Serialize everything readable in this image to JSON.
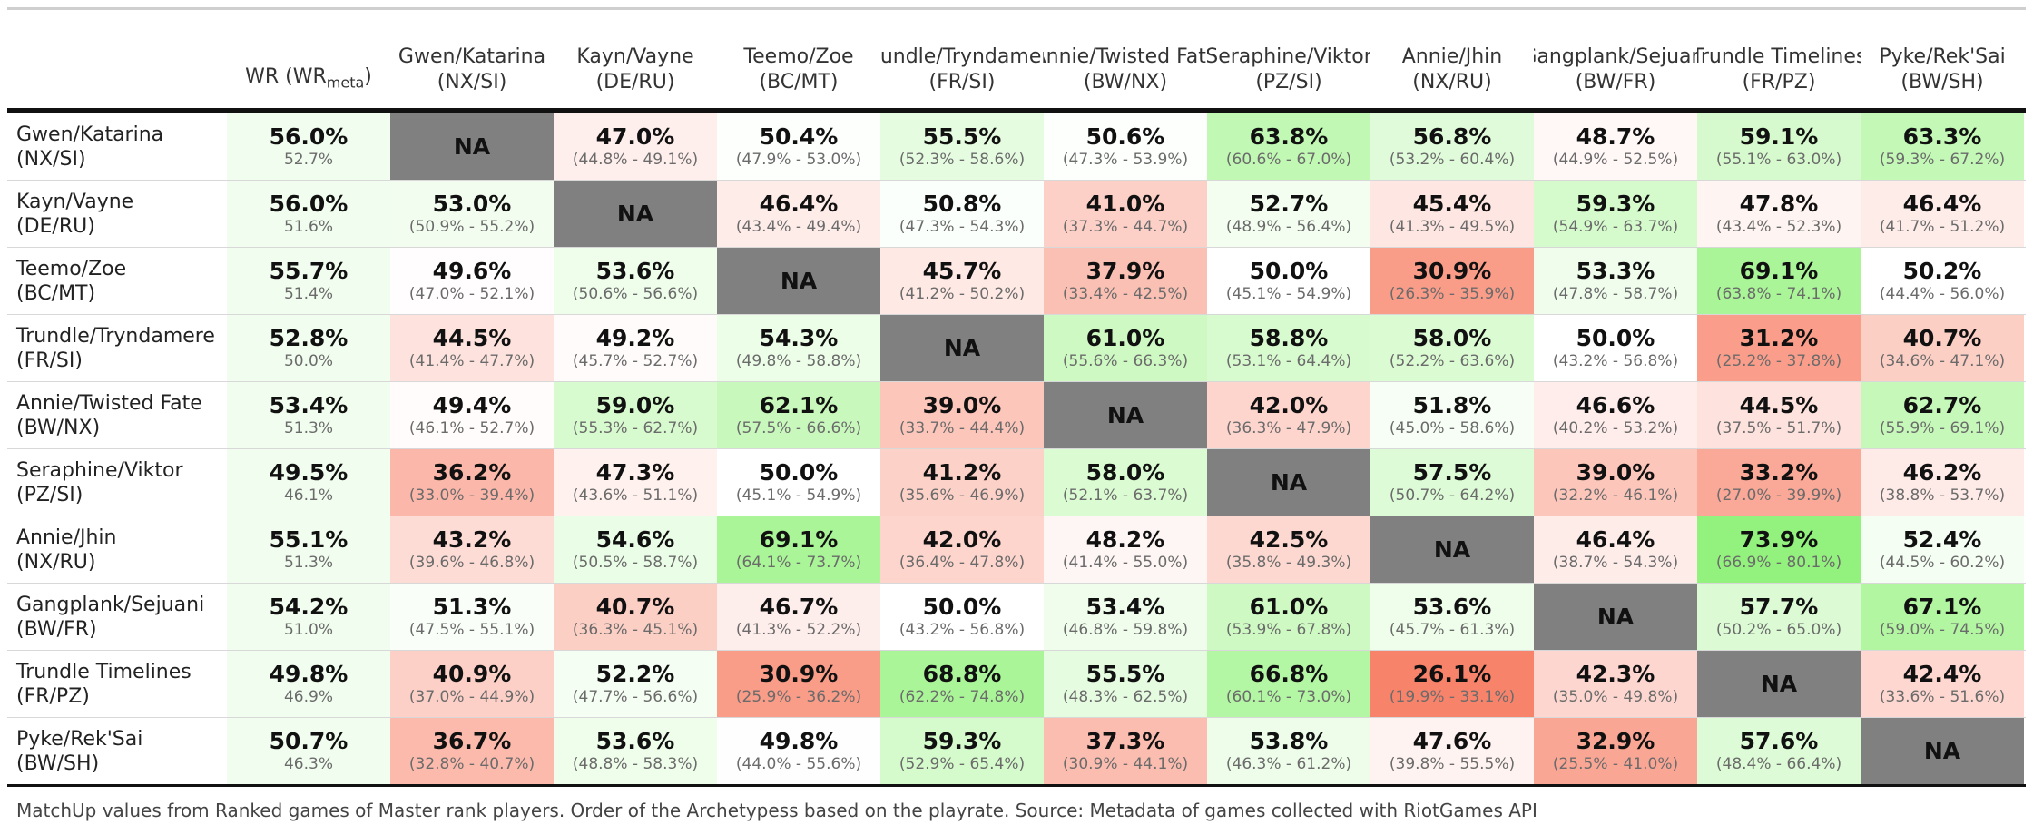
{
  "table": {
    "wr_header": "WR (WR",
    "wr_header_sub": "meta",
    "wr_header_close": ")",
    "columns": [
      {
        "name": "Gwen/Katarina",
        "code": "(NX/SI)"
      },
      {
        "name": "Kayn/Vayne",
        "code": "(DE/RU)"
      },
      {
        "name": "Teemo/Zoe",
        "code": "(BC/MT)"
      },
      {
        "name": "Trundle/Tryndamere",
        "code": "(FR/SI)"
      },
      {
        "name": "Annie/Twisted Fate",
        "code": "(BW/NX)"
      },
      {
        "name": "Seraphine/Viktor",
        "code": "(PZ/SI)"
      },
      {
        "name": "Annie/Jhin",
        "code": "(NX/RU)"
      },
      {
        "name": "Gangplank/Sejuani",
        "code": "(BW/FR)"
      },
      {
        "name": "Trundle Timelines",
        "code": "(FR/PZ)"
      },
      {
        "name": "Pyke/Rek'Sai",
        "code": "(BW/SH)"
      }
    ],
    "rows": [
      {
        "name": "Gwen/Katarina",
        "code": "(NX/SI)",
        "wr": "56.0%",
        "wr_meta": "52.7%",
        "cells": [
          {
            "v": "NA",
            "ci": "",
            "val": null
          },
          {
            "v": "47.0%",
            "ci": "(44.8% - 49.1%)",
            "val": 47.0
          },
          {
            "v": "50.4%",
            "ci": "(47.9% - 53.0%)",
            "val": 50.4
          },
          {
            "v": "55.5%",
            "ci": "(52.3% - 58.6%)",
            "val": 55.5
          },
          {
            "v": "50.6%",
            "ci": "(47.3% - 53.9%)",
            "val": 50.6
          },
          {
            "v": "63.8%",
            "ci": "(60.6% - 67.0%)",
            "val": 63.8
          },
          {
            "v": "56.8%",
            "ci": "(53.2% - 60.4%)",
            "val": 56.8
          },
          {
            "v": "48.7%",
            "ci": "(44.9% - 52.5%)",
            "val": 48.7
          },
          {
            "v": "59.1%",
            "ci": "(55.1% - 63.0%)",
            "val": 59.1
          },
          {
            "v": "63.3%",
            "ci": "(59.3% - 67.2%)",
            "val": 63.3
          }
        ]
      },
      {
        "name": "Kayn/Vayne",
        "code": "(DE/RU)",
        "wr": "56.0%",
        "wr_meta": "51.6%",
        "cells": [
          {
            "v": "53.0%",
            "ci": "(50.9% - 55.2%)",
            "val": 53.0
          },
          {
            "v": "NA",
            "ci": "",
            "val": null
          },
          {
            "v": "46.4%",
            "ci": "(43.4% - 49.4%)",
            "val": 46.4
          },
          {
            "v": "50.8%",
            "ci": "(47.3% - 54.3%)",
            "val": 50.8
          },
          {
            "v": "41.0%",
            "ci": "(37.3% - 44.7%)",
            "val": 41.0
          },
          {
            "v": "52.7%",
            "ci": "(48.9% - 56.4%)",
            "val": 52.7
          },
          {
            "v": "45.4%",
            "ci": "(41.3% - 49.5%)",
            "val": 45.4
          },
          {
            "v": "59.3%",
            "ci": "(54.9% - 63.7%)",
            "val": 59.3
          },
          {
            "v": "47.8%",
            "ci": "(43.4% - 52.3%)",
            "val": 47.8
          },
          {
            "v": "46.4%",
            "ci": "(41.7% - 51.2%)",
            "val": 46.4
          }
        ]
      },
      {
        "name": "Teemo/Zoe",
        "code": "(BC/MT)",
        "wr": "55.7%",
        "wr_meta": "51.4%",
        "cells": [
          {
            "v": "49.6%",
            "ci": "(47.0% - 52.1%)",
            "val": 49.6
          },
          {
            "v": "53.6%",
            "ci": "(50.6% - 56.6%)",
            "val": 53.6
          },
          {
            "v": "NA",
            "ci": "",
            "val": null
          },
          {
            "v": "45.7%",
            "ci": "(41.2% - 50.2%)",
            "val": 45.7
          },
          {
            "v": "37.9%",
            "ci": "(33.4% - 42.5%)",
            "val": 37.9
          },
          {
            "v": "50.0%",
            "ci": "(45.1% - 54.9%)",
            "val": 50.0
          },
          {
            "v": "30.9%",
            "ci": "(26.3% - 35.9%)",
            "val": 30.9
          },
          {
            "v": "53.3%",
            "ci": "(47.8% - 58.7%)",
            "val": 53.3
          },
          {
            "v": "69.1%",
            "ci": "(63.8% - 74.1%)",
            "val": 69.1
          },
          {
            "v": "50.2%",
            "ci": "(44.4% - 56.0%)",
            "val": 50.2
          }
        ]
      },
      {
        "name": "Trundle/Tryndamere",
        "code": "(FR/SI)",
        "wr": "52.8%",
        "wr_meta": "50.0%",
        "cells": [
          {
            "v": "44.5%",
            "ci": "(41.4% - 47.7%)",
            "val": 44.5
          },
          {
            "v": "49.2%",
            "ci": "(45.7% - 52.7%)",
            "val": 49.2
          },
          {
            "v": "54.3%",
            "ci": "(49.8% - 58.8%)",
            "val": 54.3
          },
          {
            "v": "NA",
            "ci": "",
            "val": null
          },
          {
            "v": "61.0%",
            "ci": "(55.6% - 66.3%)",
            "val": 61.0
          },
          {
            "v": "58.8%",
            "ci": "(53.1% - 64.4%)",
            "val": 58.8
          },
          {
            "v": "58.0%",
            "ci": "(52.2% - 63.6%)",
            "val": 58.0
          },
          {
            "v": "50.0%",
            "ci": "(43.2% - 56.8%)",
            "val": 50.0
          },
          {
            "v": "31.2%",
            "ci": "(25.2% - 37.8%)",
            "val": 31.2
          },
          {
            "v": "40.7%",
            "ci": "(34.6% - 47.1%)",
            "val": 40.7
          }
        ]
      },
      {
        "name": "Annie/Twisted Fate",
        "code": "(BW/NX)",
        "wr": "53.4%",
        "wr_meta": "51.3%",
        "cells": [
          {
            "v": "49.4%",
            "ci": "(46.1% - 52.7%)",
            "val": 49.4
          },
          {
            "v": "59.0%",
            "ci": "(55.3% - 62.7%)",
            "val": 59.0
          },
          {
            "v": "62.1%",
            "ci": "(57.5% - 66.6%)",
            "val": 62.1
          },
          {
            "v": "39.0%",
            "ci": "(33.7% - 44.4%)",
            "val": 39.0
          },
          {
            "v": "NA",
            "ci": "",
            "val": null
          },
          {
            "v": "42.0%",
            "ci": "(36.3% - 47.9%)",
            "val": 42.0
          },
          {
            "v": "51.8%",
            "ci": "(45.0% - 58.6%)",
            "val": 51.8
          },
          {
            "v": "46.6%",
            "ci": "(40.2% - 53.2%)",
            "val": 46.6
          },
          {
            "v": "44.5%",
            "ci": "(37.5% - 51.7%)",
            "val": 44.5
          },
          {
            "v": "62.7%",
            "ci": "(55.9% - 69.1%)",
            "val": 62.7
          }
        ]
      },
      {
        "name": "Seraphine/Viktor",
        "code": "(PZ/SI)",
        "wr": "49.5%",
        "wr_meta": "46.1%",
        "cells": [
          {
            "v": "36.2%",
            "ci": "(33.0% - 39.4%)",
            "val": 36.2
          },
          {
            "v": "47.3%",
            "ci": "(43.6% - 51.1%)",
            "val": 47.3
          },
          {
            "v": "50.0%",
            "ci": "(45.1% - 54.9%)",
            "val": 50.0
          },
          {
            "v": "41.2%",
            "ci": "(35.6% - 46.9%)",
            "val": 41.2
          },
          {
            "v": "58.0%",
            "ci": "(52.1% - 63.7%)",
            "val": 58.0
          },
          {
            "v": "NA",
            "ci": "",
            "val": null
          },
          {
            "v": "57.5%",
            "ci": "(50.7% - 64.2%)",
            "val": 57.5
          },
          {
            "v": "39.0%",
            "ci": "(32.2% - 46.1%)",
            "val": 39.0
          },
          {
            "v": "33.2%",
            "ci": "(27.0% - 39.9%)",
            "val": 33.2
          },
          {
            "v": "46.2%",
            "ci": "(38.8% - 53.7%)",
            "val": 46.2
          }
        ]
      },
      {
        "name": "Annie/Jhin",
        "code": "(NX/RU)",
        "wr": "55.1%",
        "wr_meta": "51.3%",
        "cells": [
          {
            "v": "43.2%",
            "ci": "(39.6% - 46.8%)",
            "val": 43.2
          },
          {
            "v": "54.6%",
            "ci": "(50.5% - 58.7%)",
            "val": 54.6
          },
          {
            "v": "69.1%",
            "ci": "(64.1% - 73.7%)",
            "val": 69.1
          },
          {
            "v": "42.0%",
            "ci": "(36.4% - 47.8%)",
            "val": 42.0
          },
          {
            "v": "48.2%",
            "ci": "(41.4% - 55.0%)",
            "val": 48.2
          },
          {
            "v": "42.5%",
            "ci": "(35.8% - 49.3%)",
            "val": 42.5
          },
          {
            "v": "NA",
            "ci": "",
            "val": null
          },
          {
            "v": "46.4%",
            "ci": "(38.7% - 54.3%)",
            "val": 46.4
          },
          {
            "v": "73.9%",
            "ci": "(66.9% - 80.1%)",
            "val": 73.9
          },
          {
            "v": "52.4%",
            "ci": "(44.5% - 60.2%)",
            "val": 52.4
          }
        ]
      },
      {
        "name": "Gangplank/Sejuani",
        "code": "(BW/FR)",
        "wr": "54.2%",
        "wr_meta": "51.0%",
        "cells": [
          {
            "v": "51.3%",
            "ci": "(47.5% - 55.1%)",
            "val": 51.3
          },
          {
            "v": "40.7%",
            "ci": "(36.3% - 45.1%)",
            "val": 40.7
          },
          {
            "v": "46.7%",
            "ci": "(41.3% - 52.2%)",
            "val": 46.7
          },
          {
            "v": "50.0%",
            "ci": "(43.2% - 56.8%)",
            "val": 50.0
          },
          {
            "v": "53.4%",
            "ci": "(46.8% - 59.8%)",
            "val": 53.4
          },
          {
            "v": "61.0%",
            "ci": "(53.9% - 67.8%)",
            "val": 61.0
          },
          {
            "v": "53.6%",
            "ci": "(45.7% - 61.3%)",
            "val": 53.6
          },
          {
            "v": "NA",
            "ci": "",
            "val": null
          },
          {
            "v": "57.7%",
            "ci": "(50.2% - 65.0%)",
            "val": 57.7
          },
          {
            "v": "67.1%",
            "ci": "(59.0% - 74.5%)",
            "val": 67.1
          }
        ]
      },
      {
        "name": "Trundle Timelines",
        "code": "(FR/PZ)",
        "wr": "49.8%",
        "wr_meta": "46.9%",
        "cells": [
          {
            "v": "40.9%",
            "ci": "(37.0% - 44.9%)",
            "val": 40.9
          },
          {
            "v": "52.2%",
            "ci": "(47.7% - 56.6%)",
            "val": 52.2
          },
          {
            "v": "30.9%",
            "ci": "(25.9% - 36.2%)",
            "val": 30.9
          },
          {
            "v": "68.8%",
            "ci": "(62.2% - 74.8%)",
            "val": 68.8
          },
          {
            "v": "55.5%",
            "ci": "(48.3% - 62.5%)",
            "val": 55.5
          },
          {
            "v": "66.8%",
            "ci": "(60.1% - 73.0%)",
            "val": 66.8
          },
          {
            "v": "26.1%",
            "ci": "(19.9% - 33.1%)",
            "val": 26.1
          },
          {
            "v": "42.3%",
            "ci": "(35.0% - 49.8%)",
            "val": 42.3
          },
          {
            "v": "NA",
            "ci": "",
            "val": null
          },
          {
            "v": "42.4%",
            "ci": "(33.6% - 51.6%)",
            "val": 42.4
          }
        ]
      },
      {
        "name": "Pyke/Rek'Sai",
        "code": "(BW/SH)",
        "wr": "50.7%",
        "wr_meta": "46.3%",
        "cells": [
          {
            "v": "36.7%",
            "ci": "(32.8% - 40.7%)",
            "val": 36.7
          },
          {
            "v": "53.6%",
            "ci": "(48.8% - 58.3%)",
            "val": 53.6
          },
          {
            "v": "49.8%",
            "ci": "(44.0% - 55.6%)",
            "val": 49.8
          },
          {
            "v": "59.3%",
            "ci": "(52.9% - 65.4%)",
            "val": 59.3
          },
          {
            "v": "37.3%",
            "ci": "(30.9% - 44.1%)",
            "val": 37.3
          },
          {
            "v": "53.8%",
            "ci": "(46.3% - 61.2%)",
            "val": 53.8
          },
          {
            "v": "47.6%",
            "ci": "(39.8% - 55.5%)",
            "val": 47.6
          },
          {
            "v": "32.9%",
            "ci": "(25.5% - 41.0%)",
            "val": 32.9
          },
          {
            "v": "57.6%",
            "ci": "(48.4% - 66.4%)",
            "val": 57.6
          },
          {
            "v": "NA",
            "ci": "",
            "val": null
          }
        ]
      }
    ],
    "caption": "MatchUp values from Ranked games of Master rank players. Order of the Archetypess based on the playrate. Source: Metadata of games collected with RiotGames API"
  },
  "colors": {
    "low": "#f8826a",
    "mid": "#ffffff",
    "high": "#93f27c",
    "na": "#808080",
    "wr_column": "#f1fdee"
  },
  "chart_data": {
    "type": "heatmap",
    "row_labels": [
      "Gwen/Katarina (NX/SI)",
      "Kayn/Vayne (DE/RU)",
      "Teemo/Zoe (BC/MT)",
      "Trundle/Tryndamere (FR/SI)",
      "Annie/Twisted Fate (BW/NX)",
      "Seraphine/Viktor (PZ/SI)",
      "Annie/Jhin (NX/RU)",
      "Gangplank/Sejuani (BW/FR)",
      "Trundle Timelines (FR/PZ)",
      "Pyke/Rek'Sai (BW/SH)"
    ],
    "col_labels": [
      "Gwen/Katarina (NX/SI)",
      "Kayn/Vayne (DE/RU)",
      "Teemo/Zoe (BC/MT)",
      "Trundle/Tryndamere (FR/SI)",
      "Annie/Twisted Fate (BW/NX)",
      "Seraphine/Viktor (PZ/SI)",
      "Annie/Jhin (NX/RU)",
      "Gangplank/Sejuani (BW/FR)",
      "Trundle Timelines (FR/PZ)",
      "Pyke/Rek'Sai (BW/SH)"
    ],
    "wr": [
      56.0,
      56.0,
      55.7,
      52.8,
      53.4,
      49.5,
      55.1,
      54.2,
      49.8,
      50.7
    ],
    "wr_meta": [
      52.7,
      51.6,
      51.4,
      50.0,
      51.3,
      46.1,
      51.3,
      51.0,
      46.9,
      46.3
    ],
    "values": [
      [
        null,
        47.0,
        50.4,
        55.5,
        50.6,
        63.8,
        56.8,
        48.7,
        59.1,
        63.3
      ],
      [
        53.0,
        null,
        46.4,
        50.8,
        41.0,
        52.7,
        45.4,
        59.3,
        47.8,
        46.4
      ],
      [
        49.6,
        53.6,
        null,
        45.7,
        37.9,
        50.0,
        30.9,
        53.3,
        69.1,
        50.2
      ],
      [
        44.5,
        49.2,
        54.3,
        null,
        61.0,
        58.8,
        58.0,
        50.0,
        31.2,
        40.7
      ],
      [
        49.4,
        59.0,
        62.1,
        39.0,
        null,
        42.0,
        51.8,
        46.6,
        44.5,
        62.7
      ],
      [
        36.2,
        47.3,
        50.0,
        41.2,
        58.0,
        null,
        57.5,
        39.0,
        33.2,
        46.2
      ],
      [
        43.2,
        54.6,
        69.1,
        42.0,
        48.2,
        42.5,
        null,
        46.4,
        73.9,
        52.4
      ],
      [
        51.3,
        40.7,
        46.7,
        50.0,
        53.4,
        61.0,
        53.6,
        null,
        57.7,
        67.1
      ],
      [
        40.9,
        52.2,
        30.9,
        68.8,
        55.5,
        66.8,
        26.1,
        42.3,
        null,
        42.4
      ],
      [
        36.7,
        53.6,
        49.8,
        59.3,
        37.3,
        53.8,
        47.6,
        32.9,
        57.6,
        null
      ]
    ]
  }
}
